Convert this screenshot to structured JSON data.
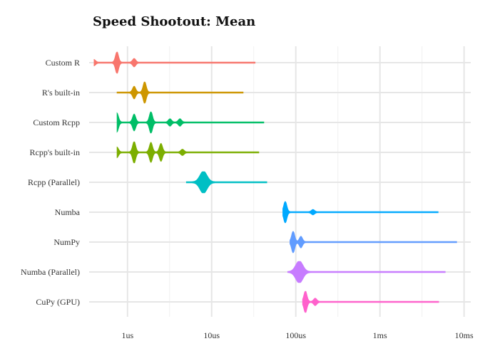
{
  "chart_data": {
    "type": "violin",
    "title": "Speed Shootout: Mean",
    "xlabel": "",
    "ylabel": "",
    "x_scale": "log",
    "x_unit": "seconds",
    "xlim": [
      3.5e-07,
      0.012
    ],
    "x_ticks": [
      {
        "value": 1e-06,
        "label": "1us"
      },
      {
        "value": 1e-05,
        "label": "10us"
      },
      {
        "value": 0.0001,
        "label": "100us"
      },
      {
        "value": 0.001,
        "label": "1ms"
      },
      {
        "value": 0.01,
        "label": "10ms"
      }
    ],
    "grid": true,
    "legend": "none",
    "series": [
      {
        "name": "Custom R",
        "color": "#F8766D",
        "min": 4e-07,
        "max": 3.3e-05,
        "peaks": [
          [
            4e-07,
            0.25
          ],
          [
            7.5e-07,
            1.0
          ],
          [
            1.2e-06,
            0.35
          ]
        ]
      },
      {
        "name": "R's built-in",
        "color": "#CD9600",
        "min": 7.5e-07,
        "max": 2.4e-05,
        "peaks": [
          [
            1.2e-06,
            0.55
          ],
          [
            1.6e-06,
            1.0
          ]
        ]
      },
      {
        "name": "Custom Rcpp",
        "color": "#00BE67",
        "min": 7.5e-07,
        "max": 4.2e-05,
        "peaks": [
          [
            7.5e-07,
            0.85
          ],
          [
            1.2e-06,
            0.75
          ],
          [
            1.9e-06,
            1.0
          ],
          [
            3.2e-06,
            0.3
          ],
          [
            4.2e-06,
            0.3
          ]
        ]
      },
      {
        "name": "Rcpp's built-in",
        "color": "#7CAE00",
        "min": 7.5e-07,
        "max": 3.7e-05,
        "peaks": [
          [
            7.5e-07,
            0.45
          ],
          [
            1.2e-06,
            1.0
          ],
          [
            1.9e-06,
            0.9
          ],
          [
            2.5e-06,
            0.8
          ],
          [
            4.5e-06,
            0.25
          ]
        ]
      },
      {
        "name": "Rcpp (Parallel)",
        "color": "#00BFC4",
        "min": 5e-06,
        "max": 4.6e-05,
        "peaks": [
          [
            8e-06,
            1.0
          ]
        ]
      },
      {
        "name": "Numba",
        "color": "#00A9FF",
        "min": 7e-05,
        "max": 0.005,
        "peaks": [
          [
            7.5e-05,
            1.0
          ],
          [
            0.00016,
            0.2
          ]
        ]
      },
      {
        "name": "NumPy",
        "color": "#619CFF",
        "min": 8.5e-05,
        "max": 0.0082,
        "peaks": [
          [
            9.3e-05,
            1.0
          ],
          [
            0.000115,
            0.5
          ]
        ]
      },
      {
        "name": "Numba (Parallel)",
        "color": "#C77CFF",
        "min": 8e-05,
        "max": 0.006,
        "peaks": [
          [
            0.00011,
            1.0
          ]
        ]
      },
      {
        "name": "CuPy (GPU)",
        "color": "#FF61CC",
        "min": 0.00012,
        "max": 0.005,
        "peaks": [
          [
            0.00013,
            1.0
          ],
          [
            0.00017,
            0.3
          ]
        ]
      }
    ]
  }
}
